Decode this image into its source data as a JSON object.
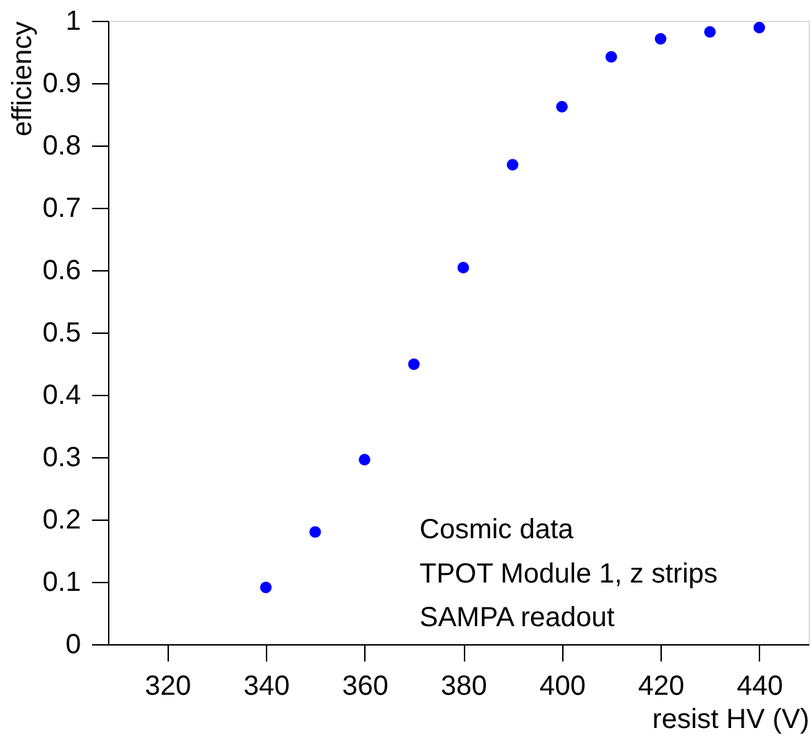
{
  "chart_data": {
    "type": "scatter",
    "xlabel": "resist HV (V)",
    "ylabel": "efficiency",
    "x": [
      340,
      350,
      360,
      370,
      380,
      390,
      400,
      410,
      420,
      430,
      440
    ],
    "series": [
      {
        "color": "#0000ff",
        "values": [
          0.091,
          0.18,
          0.296,
          0.449,
          0.604,
          0.769,
          0.862,
          0.942,
          0.971,
          0.982,
          0.989
        ]
      }
    ],
    "xlim": [
      308,
      450
    ],
    "xticks": [
      320,
      340,
      360,
      380,
      400,
      420,
      440
    ],
    "ylim": [
      0,
      1
    ],
    "yticks": [
      0,
      0.1,
      0.2,
      0.3,
      0.4,
      0.5,
      0.6,
      0.7,
      0.8,
      0.9,
      1
    ],
    "marker": "circle",
    "grid": false,
    "annotations": [
      "Cosmic data",
      "TPOT Module 1, z strips",
      "SAMPA readout"
    ]
  }
}
